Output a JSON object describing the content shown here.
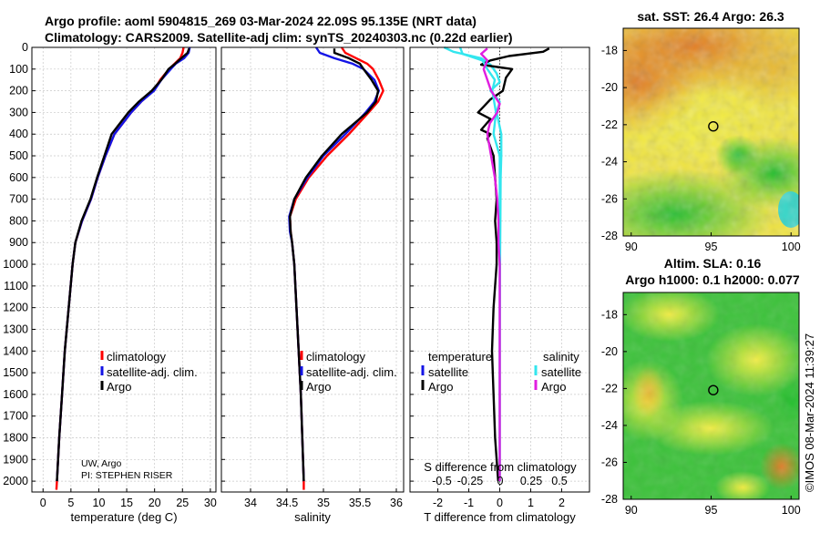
{
  "colors": {
    "red": "#ff0000",
    "blue": "#1414e6",
    "black": "#000000",
    "cyan": "#33e6ee",
    "magenta": "#e01ee0"
  },
  "header": {
    "line1": "Argo profile: aoml 5904815_269 03-Mar-2024 22.09S 95.135E (NRT data)",
    "line2": "Climatology: CARS2009. Satellite-adj clim: synTS_20240303.nc (0.22d earlier)"
  },
  "depth_ticks": [
    "0",
    "100",
    "200",
    "300",
    "400",
    "500",
    "600",
    "700",
    "800",
    "900",
    "1000",
    "1100",
    "1200",
    "1300",
    "1400",
    "1500",
    "1600",
    "1700",
    "1800",
    "1900",
    "2000"
  ],
  "credit": {
    "line1": "UW, Argo",
    "line2": "PI: STEPHEN RISER"
  },
  "side_label": "©IMOS 08-Mar-2024 11:39:27",
  "chart_data": [
    {
      "type": "line",
      "name": "temperature profile",
      "xlabel": "temperature (deg C)",
      "ylabel": "depth",
      "xlim": [
        -2,
        31
      ],
      "ylim": [
        2050,
        0
      ],
      "xticks": [
        0,
        5,
        10,
        15,
        20,
        25,
        30
      ],
      "xtick_labels": [
        "0",
        "5",
        "10",
        "15",
        "20",
        "25",
        "30"
      ],
      "legend": [
        "climatology",
        "satellite-adj. clim.",
        "Argo"
      ],
      "series": [
        {
          "name": "climatology",
          "color": "red",
          "depth": [
            0,
            25,
            50,
            75,
            100,
            150,
            200,
            250,
            300,
            400,
            500,
            600,
            700,
            800,
            900,
            1000,
            1200,
            1400,
            1600,
            1800,
            2000,
            2040
          ],
          "values": [
            25.2,
            25.0,
            24.6,
            23.6,
            22.6,
            21.0,
            19.8,
            17.6,
            15.8,
            12.8,
            11.2,
            9.8,
            8.6,
            7.0,
            5.8,
            5.3,
            4.6,
            3.9,
            3.4,
            2.9,
            2.5,
            2.4
          ]
        },
        {
          "name": "satellite-adj. clim.",
          "color": "blue",
          "depth": [
            0,
            25,
            50,
            75,
            100,
            150,
            200,
            250,
            300,
            400,
            500,
            600,
            700,
            800,
            900,
            1000,
            1200,
            1400,
            1600,
            1800,
            2000
          ],
          "values": [
            26.3,
            26.1,
            25.3,
            23.8,
            22.9,
            21.2,
            19.9,
            17.6,
            15.8,
            12.8,
            11.2,
            9.8,
            8.6,
            7.0,
            5.8,
            5.3,
            4.6,
            3.9,
            3.4,
            2.9,
            2.5
          ]
        },
        {
          "name": "Argo",
          "color": "black",
          "depth": [
            5,
            25,
            50,
            75,
            100,
            150,
            200,
            250,
            300,
            400,
            500,
            600,
            700,
            800,
            900,
            1000,
            1200,
            1400,
            1600,
            1800,
            2000
          ],
          "values": [
            26.2,
            25.9,
            24.8,
            23.7,
            22.5,
            21.2,
            19.5,
            17.2,
            15.3,
            12.3,
            11.0,
            9.7,
            8.5,
            6.9,
            5.8,
            5.3,
            4.6,
            3.9,
            3.4,
            2.9,
            2.5
          ]
        }
      ]
    },
    {
      "type": "line",
      "name": "salinity profile",
      "xlabel": "salinity",
      "ylabel": "depth",
      "xlim": [
        33.6,
        36.1
      ],
      "ylim": [
        2050,
        0
      ],
      "xticks": [
        34,
        34.5,
        35,
        35.5,
        36
      ],
      "xtick_labels": [
        "34",
        "34.5",
        "35",
        "35.5",
        "36"
      ],
      "legend": [
        "climatology",
        "satellite-adj. clim.",
        "Argo"
      ],
      "series": [
        {
          "name": "climatology",
          "color": "red",
          "depth": [
            0,
            25,
            50,
            75,
            100,
            150,
            200,
            250,
            300,
            400,
            500,
            600,
            700,
            780,
            850,
            900,
            1000,
            1200,
            1400,
            1600,
            1800,
            2000,
            2040
          ],
          "values": [
            35.25,
            35.3,
            35.45,
            35.6,
            35.68,
            35.76,
            35.82,
            35.75,
            35.62,
            35.35,
            35.05,
            34.8,
            34.62,
            34.54,
            34.55,
            34.57,
            34.6,
            34.63,
            34.66,
            34.69,
            34.71,
            34.73,
            34.73
          ]
        },
        {
          "name": "satellite-adj. clim.",
          "color": "blue",
          "depth": [
            0,
            25,
            50,
            75,
            100,
            150,
            200,
            250,
            300,
            400,
            500,
            600,
            700,
            780,
            850,
            900,
            1000,
            1200,
            1400,
            1600,
            1800,
            2000
          ],
          "values": [
            34.9,
            34.95,
            35.15,
            35.4,
            35.55,
            35.7,
            35.76,
            35.7,
            35.58,
            35.3,
            35.0,
            34.78,
            34.6,
            34.53,
            34.54,
            34.57,
            34.6,
            34.63,
            34.66,
            34.69,
            34.71,
            34.73
          ]
        },
        {
          "name": "Argo",
          "color": "black",
          "depth": [
            5,
            25,
            50,
            75,
            100,
            150,
            200,
            250,
            300,
            400,
            500,
            600,
            700,
            780,
            850,
            900,
            1000,
            1200,
            1400,
            1600,
            1800,
            2000
          ],
          "values": [
            35.15,
            35.15,
            35.35,
            35.5,
            35.55,
            35.66,
            35.75,
            35.72,
            35.6,
            35.25,
            34.98,
            34.76,
            34.6,
            34.54,
            34.55,
            34.57,
            34.6,
            34.63,
            34.66,
            34.69,
            34.71,
            34.73
          ]
        }
      ]
    },
    {
      "type": "line",
      "name": "difference from climatology",
      "xlabel": "T difference from climatology",
      "x2label": "S difference from climatology",
      "ylabel": "depth",
      "xlim": [
        -2.9,
        2.9
      ],
      "ylim": [
        2050,
        0
      ],
      "xticks": [
        -2,
        -1,
        0,
        1,
        2
      ],
      "xtick_labels": [
        "-2",
        "-1",
        "0",
        "1",
        "2"
      ],
      "x2ticks": [
        -0.5,
        -0.25,
        0,
        0.25,
        0.5
      ],
      "x2tick_labels": [
        "-0.5",
        "-0.25",
        "0",
        "0.25",
        "0.5"
      ],
      "legend_titles": [
        "temperature",
        "salinity"
      ],
      "legend": [
        "satellite",
        "Argo",
        "satellite",
        "Argo"
      ],
      "series": [
        {
          "name": "temperature satellite",
          "color": "cyan",
          "depth": [
            0,
            20,
            50,
            80,
            120,
            160,
            200,
            250,
            300,
            400,
            500,
            600,
            800,
            1000,
            1500,
            2000
          ],
          "values": [
            -1.8,
            -1.5,
            -0.6,
            -0.3,
            -0.1,
            0.0,
            -0.3,
            0.0,
            -0.1,
            0.05,
            0.05,
            0.03,
            0.02,
            0.01,
            0.0,
            0.0
          ]
        },
        {
          "name": "temperature Argo",
          "color": "black",
          "depth": [
            5,
            20,
            40,
            60,
            80,
            100,
            140,
            200,
            240,
            270,
            300,
            330,
            380,
            400,
            420,
            500,
            600,
            700,
            800,
            900,
            1000,
            1200,
            1400,
            1600,
            1800,
            2000
          ],
          "values": [
            1.6,
            1.4,
            0.3,
            -0.3,
            -0.6,
            0.4,
            0.2,
            0.1,
            -0.3,
            -0.5,
            -0.7,
            -0.3,
            -0.6,
            -0.3,
            -0.4,
            -0.2,
            -0.15,
            -0.1,
            -0.15,
            -0.1,
            -0.1,
            -0.2,
            -0.25,
            -0.2,
            -0.15,
            -0.05
          ]
        },
        {
          "name": "salinity satellite",
          "color": "cyan",
          "depth": [
            0,
            30,
            60,
            100,
            150,
            200,
            300,
            400,
            500,
            700,
            1000,
            1500,
            2000
          ],
          "values": [
            -0.32,
            -0.3,
            -0.14,
            -0.1,
            -0.04,
            -0.06,
            -0.03,
            -0.05,
            0.0,
            0.0,
            0.0,
            0.0,
            0.0
          ]
        },
        {
          "name": "salinity Argo",
          "color": "magenta",
          "depth": [
            5,
            30,
            60,
            100,
            150,
            200,
            260,
            300,
            350,
            400,
            500,
            600,
            700,
            800,
            900,
            1000,
            1200,
            1400,
            1600,
            1800,
            2000
          ],
          "values": [
            -0.1,
            -0.15,
            -0.1,
            -0.13,
            -0.1,
            -0.07,
            0.0,
            -0.02,
            -0.08,
            -0.1,
            -0.07,
            -0.04,
            -0.02,
            -0.01,
            -0.01,
            0.0,
            0.0,
            0.0,
            0.0,
            0.0,
            0.0
          ]
        }
      ]
    },
    {
      "type": "heatmap",
      "name": "satellite SST map",
      "title": "sat. SST: 26.4 Argo: 26.3",
      "xlim": [
        89.5,
        100.5
      ],
      "ylim": [
        -28,
        -16.8
      ],
      "xticks": [
        90,
        95,
        100
      ],
      "xtick_labels": [
        "90",
        "95",
        "100"
      ],
      "yticks": [
        -18,
        -20,
        -22,
        -24,
        -26,
        -28
      ],
      "ytick_labels": [
        "-18",
        "-20",
        "-22",
        "-24",
        "-26",
        "-28"
      ],
      "marker": {
        "lon": 95.135,
        "lat": -22.09
      }
    },
    {
      "type": "heatmap",
      "name": "altimeter SLA map",
      "title_line1": "Altim. SLA: 0.16",
      "title_line2": "Argo h1000: 0.1 h2000: 0.077",
      "xlim": [
        89.5,
        100.5
      ],
      "ylim": [
        -28,
        -16.8
      ],
      "xticks": [
        90,
        95,
        100
      ],
      "xtick_labels": [
        "90",
        "95",
        "100"
      ],
      "yticks": [
        -18,
        -20,
        -22,
        -24,
        -26,
        -28
      ],
      "ytick_labels": [
        "-18",
        "-20",
        "-22",
        "-24",
        "-26",
        "-28"
      ],
      "marker": {
        "lon": 95.135,
        "lat": -22.09
      }
    }
  ]
}
